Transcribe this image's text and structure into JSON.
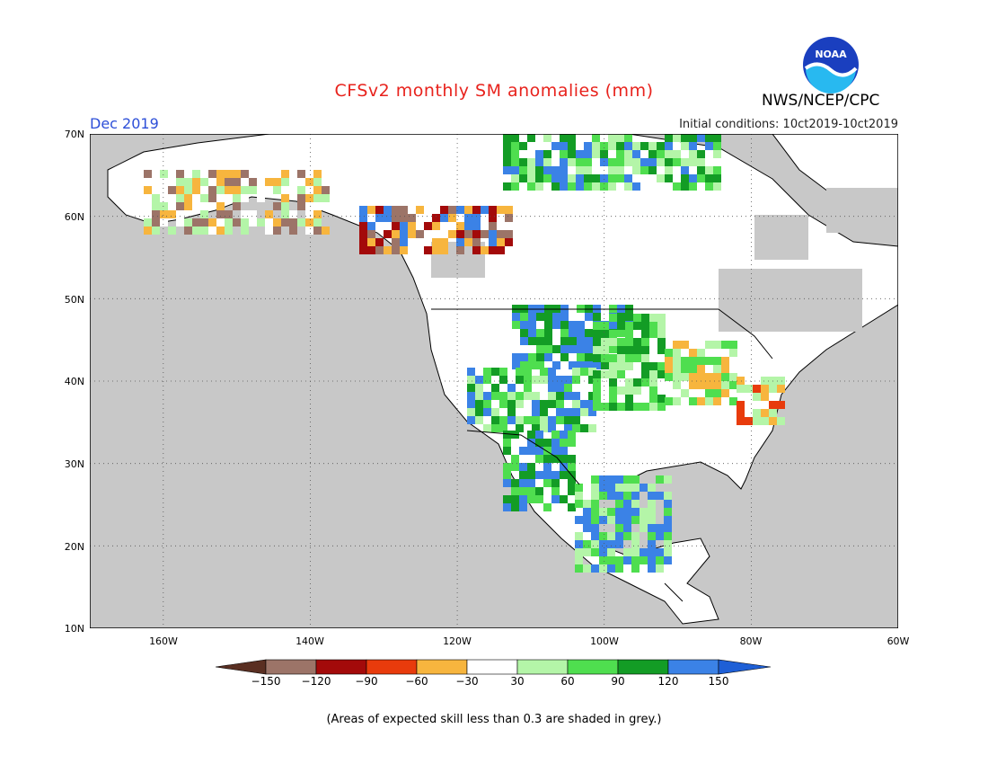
{
  "title": "CFSv2 monthly SM anomalies (mm)",
  "month": "Dec 2019",
  "initial_conditions": "Initial conditions: 10ct2019-10ct2019",
  "agency": "NWS/NCEP/CPC",
  "logo_text": "NOAA",
  "lat_labels": [
    "70N",
    "60N",
    "50N",
    "40N",
    "30N",
    "20N",
    "10N"
  ],
  "lon_labels": [
    "160W",
    "140W",
    "120W",
    "100W",
    "80W",
    "60W"
  ],
  "colorbar": {
    "labels": [
      "−150",
      "−120",
      "−90",
      "−60",
      "−30",
      "30",
      "60",
      "90",
      "120",
      "150"
    ],
    "colors": [
      "#5a2f22",
      "#9c7468",
      "#a30a0a",
      "#e83b0c",
      "#f7b53e",
      "#ffffff",
      "#b4f5a8",
      "#4fde4f",
      "#139c25",
      "#3b82e6",
      "#1e5fd6"
    ]
  },
  "footnote": "(Areas of expected skill less than 0.3 are shaded in grey.)",
  "colors": {
    "ocean": "#c8c8c8",
    "skill_grey": "#c8c8c8",
    "title": "#e8231d",
    "month": "#2d4fd8"
  }
}
